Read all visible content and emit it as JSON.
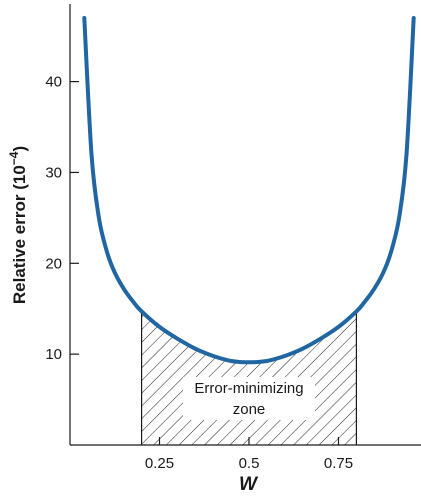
{
  "chart_data": {
    "type": "line",
    "xlabel": "W",
    "ylabel": "Relative error (10",
    "ylabel_exponent": "−4",
    "ylabel_suffix": ")",
    "xlim": [
      0,
      1
    ],
    "ylim": [
      0,
      47
    ],
    "xticks": [
      0.25,
      0.5,
      0.75
    ],
    "xtick_labels": [
      "0.25",
      "0.5",
      "0.75"
    ],
    "yticks": [
      10,
      20,
      30,
      40
    ],
    "ytick_labels": [
      "10",
      "20",
      "30",
      "40"
    ],
    "grid": false,
    "series": [
      {
        "color": "#1f66a3",
        "x": [
          0.04,
          0.06,
          0.08,
          0.1,
          0.12,
          0.15,
          0.18,
          0.2,
          0.25,
          0.3,
          0.35,
          0.4,
          0.45,
          0.5,
          0.55,
          0.6,
          0.65,
          0.7,
          0.75,
          0.8,
          0.82,
          0.85,
          0.88,
          0.9,
          0.92,
          0.94,
          0.96
        ],
        "y": [
          47.0,
          32.0,
          25.2,
          21.7,
          19.4,
          17.2,
          15.6,
          14.7,
          13.0,
          11.7,
          10.6,
          9.8,
          9.25,
          9.1,
          9.25,
          9.8,
          10.6,
          11.7,
          13.0,
          14.7,
          15.6,
          17.2,
          19.4,
          21.7,
          25.2,
          32.0,
          47.0
        ]
      }
    ],
    "annotation": {
      "text_line1": "Error-minimizing",
      "text_line2": "zone",
      "x_range": [
        0.2,
        0.8
      ],
      "pattern": "hatched"
    }
  }
}
